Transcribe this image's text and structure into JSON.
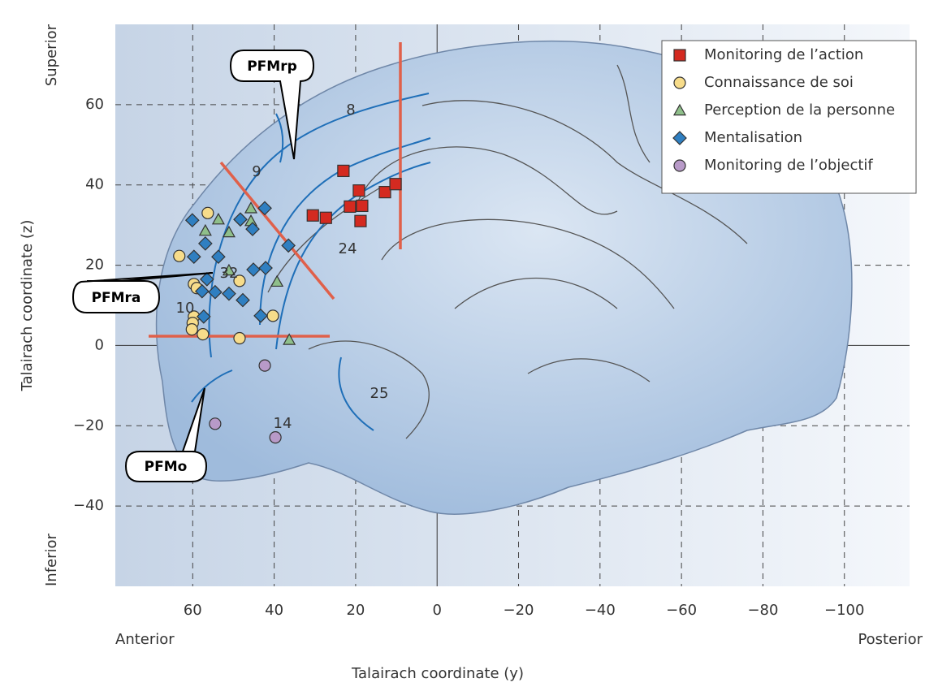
{
  "chart_data": {
    "type": "scatter",
    "xlabel": "Talairach coordinate (y)",
    "ylabel": "Talairach coordinate (z)",
    "direction_labels": {
      "anterior": "Anterior",
      "posterior": "Posterior",
      "superior": "Superior",
      "inferior": "Inferior"
    },
    "callouts": [
      "PFMrp",
      "PFMra",
      "PFMo"
    ],
    "areas": [
      "8",
      "9",
      "24",
      "32",
      "10",
      "25",
      "14"
    ],
    "xlim": [
      79,
      -116
    ],
    "ylim": [
      -60,
      80
    ],
    "xticks": [
      60,
      40,
      20,
      0,
      {
        "value": -20,
        "label": "−20"
      },
      {
        "value": -40,
        "label": "−40"
      },
      {
        "value": -60,
        "label": "−60"
      },
      {
        "value": -80,
        "label": "−80"
      },
      {
        "value": -100,
        "label": "−100"
      }
    ],
    "yticks": [
      60,
      40,
      20,
      0,
      {
        "value": -20,
        "label": "−20"
      },
      {
        "value": -40,
        "label": "−40"
      }
    ],
    "grid": true,
    "legend": "upper right",
    "series": [
      {
        "name": "Monitoring de l’action",
        "color": "#d42a20",
        "marker": "square",
        "x": [
          23,
          30.5,
          27.3,
          21.4,
          19.2,
          18.4,
          18.8,
          12.8,
          10.2
        ],
        "values": [
          43.5,
          32.4,
          31.8,
          34.6,
          38.6,
          34.8,
          31,
          38.2,
          40.2
        ]
      },
      {
        "name": "Connaissance de soi",
        "color": "#f7dc8a",
        "marker": "circle",
        "x": [
          63.3,
          56.3,
          48.5,
          59.7,
          59,
          59.7,
          60,
          60.2,
          57.5,
          48.5,
          40.3
        ],
        "values": [
          22.3,
          33,
          16.1,
          15.3,
          14.3,
          7.2,
          5.6,
          4,
          2.8,
          1.8,
          7.4
        ]
      },
      {
        "name": "Perception de la personne",
        "color": "#8fbf8a",
        "marker": "triangle",
        "x": [
          53.7,
          56.9,
          51.1,
          45.7,
          45.7,
          51.1,
          39.3,
          36.3
        ],
        "values": [
          31.4,
          28.6,
          28.2,
          34.2,
          31,
          18.7,
          15.9,
          1.4
        ]
      },
      {
        "name": "Mentalisation",
        "color": "#2f7fc1",
        "marker": "diamond",
        "x": [
          60.1,
          56.9,
          59.7,
          53.7,
          48.3,
          45.3,
          42.3,
          36.5,
          45.1,
          42.1,
          57.7,
          54.5,
          51.1,
          56.5,
          47.7,
          43.3,
          57.3
        ],
        "values": [
          31.2,
          25.4,
          22.1,
          22.1,
          31.4,
          29,
          34.2,
          24.9,
          18.9,
          19.3,
          13.5,
          13.3,
          12.9,
          16.5,
          11.3,
          7.4,
          7.2
        ]
      },
      {
        "name": "Monitoring de l’objectif",
        "color": "#b89ac8",
        "marker": "circle",
        "x": [
          42.3,
          54.5,
          39.7
        ],
        "values": [
          -5,
          -19.5,
          -22.9
        ]
      }
    ]
  }
}
